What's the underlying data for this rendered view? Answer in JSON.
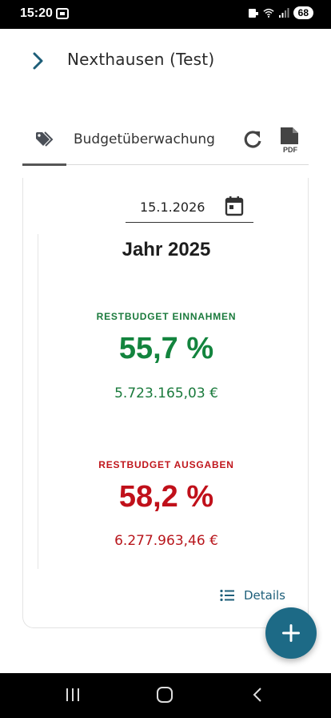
{
  "status_bar": {
    "time": "15:20",
    "battery": "68"
  },
  "header": {
    "title": "Nexthausen (Test)"
  },
  "tabs": {
    "active_label": "Budgetüberwachung"
  },
  "card": {
    "date_value": "15.1.2026",
    "year_label": "Jahr 2025",
    "income": {
      "label": "RESTBUDGET EINNAHMEN",
      "percent": "55,7 %",
      "amount": "5.723.165,03 €"
    },
    "expenses": {
      "label": "RESTBUDGET AUSGABEN",
      "percent": "58,2 %",
      "amount": "6.277.963,46 €"
    },
    "details_label": "Details"
  },
  "colors": {
    "accent": "#1d6a86",
    "income": "#13843e",
    "expenses": "#c0101a"
  },
  "icons": [
    "notification-icon",
    "wifi-icon",
    "signal-icon",
    "chevron-right-icon",
    "tag-icon",
    "refresh-icon",
    "pdf-icon",
    "calendar-icon",
    "list-icon",
    "plus-icon"
  ]
}
